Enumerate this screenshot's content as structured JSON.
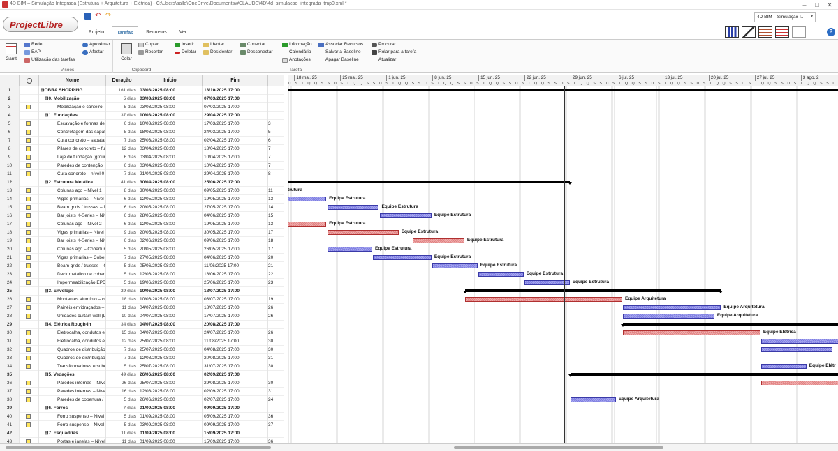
{
  "window": {
    "title": "4D BIM – Simulação Integrada (Estrutura + Arquitetura + Elétrica) - C:\\Users\\salle\\OneDrive\\Documents\\#CLAUDE\\4D\\4d_simulacao_integrada_tmp0.xml *",
    "minimize": "–",
    "maximize": "□",
    "close": "✕"
  },
  "logo": "ProjectLibre",
  "tabs": [
    "Projeto",
    "Tarefas",
    "Recursos",
    "Ver"
  ],
  "active_tab": "Tarefas",
  "project_selector": "4D BIM – Simulação I...",
  "help": "?",
  "ribbon": {
    "gantt": "Gantt",
    "views": {
      "items": [
        "Rede",
        "EAP",
        "Utilização das tarefas",
        "Aproximar",
        "Afastar"
      ],
      "label": "Visões"
    },
    "clipboard": {
      "paste": "Colar",
      "items": [
        "Copiar",
        "Recortar"
      ],
      "label": "Clipboard"
    },
    "task": {
      "items": [
        "Inserir",
        "Deletar",
        "Identar",
        "Desidentar",
        "Conectar",
        "Desconectar",
        "Informação",
        "Calendário",
        "Anotações",
        "Associar Recursos",
        "Salvar a Baseline",
        "Apagar Baseline",
        "Procurar",
        "Rolar para a tarefa",
        "Atualizar"
      ],
      "label": "Tarefa"
    }
  },
  "columns": [
    "Nome",
    "Duração",
    "Início",
    "Fim"
  ],
  "rows": [
    [
      "1",
      "",
      0,
      "OBRA SHOPPING",
      "161 dias",
      "03/03/2025 08:00",
      "13/10/2025 17:00",
      "",
      1
    ],
    [
      "2",
      "",
      1,
      "0. Mobilização",
      "5 dias",
      "03/03/2025 08:00",
      "07/03/2025 17:00",
      "",
      1
    ],
    [
      "3",
      "n",
      2,
      "Mobilização e canteiro",
      "5 dias",
      "03/03/2025 08:00",
      "07/03/2025 17:00",
      "",
      0
    ],
    [
      "4",
      "",
      1,
      "1. Fundações",
      "37 dias",
      "10/03/2025 08:00",
      "29/04/2025 17:00",
      "",
      1
    ],
    [
      "5",
      "n",
      2,
      "Escavação e formas de s",
      "6 dias",
      "10/03/2025 08:00",
      "17/03/2025 17:00",
      "3",
      0
    ],
    [
      "6",
      "n",
      2,
      "Concretagem das sapata",
      "5 dias",
      "18/03/2025 08:00",
      "24/03/2025 17:00",
      "5",
      0
    ],
    [
      "7",
      "n",
      2,
      "Cura concreto – sapatas",
      "7 dias",
      "25/03/2025 08:00",
      "02/04/2025 17:00",
      "6",
      0
    ],
    [
      "8",
      "n",
      2,
      "Pilares de concreto – fun",
      "12 dias",
      "03/04/2025 08:00",
      "18/04/2025 17:00",
      "7",
      0
    ],
    [
      "9",
      "n",
      2,
      "Laje de fundação (groun",
      "6 dias",
      "03/04/2025 08:00",
      "10/04/2025 17:00",
      "7",
      0
    ],
    [
      "10",
      "n",
      2,
      "Paredes de contenção",
      "6 dias",
      "03/04/2025 08:00",
      "10/04/2025 17:00",
      "7",
      0
    ],
    [
      "11",
      "n",
      2,
      "Cura concreto – nível 0",
      "7 dias",
      "21/04/2025 08:00",
      "29/04/2025 17:00",
      "8",
      0
    ],
    [
      "12",
      "",
      1,
      "2. Estrutura Metálica",
      "41 dias",
      "30/04/2025 08:00",
      "25/06/2025 17:00",
      "",
      1
    ],
    [
      "13",
      "n",
      2,
      "Colunas aço – Nível 1",
      "8 dias",
      "30/04/2025 08:00",
      "09/05/2025 17:00",
      "11",
      0
    ],
    [
      "14",
      "n",
      2,
      "Vigas primárias – Nível 1",
      "6 dias",
      "12/05/2025 08:00",
      "19/05/2025 17:00",
      "13",
      0
    ],
    [
      "15",
      "n",
      2,
      "Beam grids / trusses – N",
      "6 dias",
      "20/05/2025 08:00",
      "27/05/2025 17:00",
      "14",
      0
    ],
    [
      "16",
      "n",
      2,
      "Bar joists K-Series – Níve",
      "6 dias",
      "28/05/2025 08:00",
      "04/06/2025 17:00",
      "15",
      0
    ],
    [
      "17",
      "n",
      2,
      "Colunas aço – Nível 2",
      "6 dias",
      "12/05/2025 08:00",
      "19/05/2025 17:00",
      "13",
      0
    ],
    [
      "18",
      "n",
      2,
      "Vigas primárias – Nível 2",
      "9 dias",
      "20/05/2025 08:00",
      "30/05/2025 17:00",
      "17",
      0
    ],
    [
      "19",
      "n",
      2,
      "Bar joists K-Series – Níve",
      "6 dias",
      "02/06/2025 08:00",
      "09/06/2025 17:00",
      "18",
      0
    ],
    [
      "20",
      "n",
      2,
      "Colunas aço – Cobertura",
      "5 dias",
      "20/05/2025 08:00",
      "26/05/2025 17:00",
      "17",
      0
    ],
    [
      "21",
      "n",
      2,
      "Vigas primárias – Cobert",
      "7 dias",
      "27/05/2025 08:00",
      "04/06/2025 17:00",
      "20",
      0
    ],
    [
      "22",
      "n",
      2,
      "Beam grids / trusses – Co",
      "5 dias",
      "05/06/2025 08:00",
      "11/06/2025 17:00",
      "21",
      0
    ],
    [
      "23",
      "n",
      2,
      "Deck metálico de cobertu",
      "5 dias",
      "12/06/2025 08:00",
      "18/06/2025 17:00",
      "22",
      0
    ],
    [
      "24",
      "n",
      2,
      "Impermeabilização EPDM",
      "5 dias",
      "19/06/2025 08:00",
      "25/06/2025 17:00",
      "23",
      0
    ],
    [
      "25",
      "",
      1,
      "3. Envelope",
      "29 dias",
      "10/06/2025 08:00",
      "18/07/2025 17:00",
      "",
      1
    ],
    [
      "26",
      "n",
      2,
      "Montantes alumínio – cur",
      "18 dias",
      "10/06/2025 08:00",
      "03/07/2025 17:00",
      "19",
      0
    ],
    [
      "27",
      "n",
      2,
      "Painéis envidraçados – gl",
      "11 dias",
      "04/07/2025 08:00",
      "18/07/2025 17:00",
      "26",
      0
    ],
    [
      "28",
      "n",
      2,
      "Unidades curtain wall (L1",
      "10 dias",
      "04/07/2025 08:00",
      "17/07/2025 17:00",
      "26",
      0
    ],
    [
      "29",
      "",
      1,
      "4. Elétrica Rough-in",
      "34 dias",
      "04/07/2025 08:00",
      "20/08/2025 17:00",
      "",
      1
    ],
    [
      "30",
      "n",
      2,
      "Eletrocalha, condutos e c",
      "15 dias",
      "04/07/2025 08:00",
      "24/07/2025 17:00",
      "26",
      0
    ],
    [
      "31",
      "n",
      2,
      "Eletrocalha, condutos e c",
      "12 dias",
      "25/07/2025 08:00",
      "11/08/2025 17:00",
      "30",
      0
    ],
    [
      "32",
      "n",
      2,
      "Quadros de distribuição 2",
      "7 dias",
      "25/07/2025 08:00",
      "04/08/2025 17:00",
      "30",
      0
    ],
    [
      "33",
      "n",
      2,
      "Quadros de distribuição 2",
      "7 dias",
      "12/08/2025 08:00",
      "20/08/2025 17:00",
      "31",
      0
    ],
    [
      "34",
      "n",
      2,
      "Transformadores e subes",
      "5 dias",
      "25/07/2025 08:00",
      "31/07/2025 17:00",
      "30",
      0
    ],
    [
      "35",
      "",
      1,
      "5. Vedações",
      "49 dias",
      "26/06/2025 08:00",
      "02/09/2025 17:00",
      "",
      1
    ],
    [
      "36",
      "n",
      2,
      "Paredes internas – Nível",
      "26 dias",
      "25/07/2025 08:00",
      "29/08/2025 17:00",
      "30",
      0
    ],
    [
      "37",
      "n",
      2,
      "Paredes internas – Nível",
      "16 dias",
      "12/08/2025 08:00",
      "02/09/2025 17:00",
      "31",
      0
    ],
    [
      "38",
      "n",
      2,
      "Paredes de cobertura / n",
      "5 dias",
      "26/06/2025 08:00",
      "02/07/2025 17:00",
      "24",
      0
    ],
    [
      "39",
      "",
      1,
      "6. Forros",
      "7 dias",
      "01/09/2025 08:00",
      "09/09/2025 17:00",
      "",
      1
    ],
    [
      "40",
      "n",
      2,
      "Forro suspenso – Nível 1",
      "5 dias",
      "01/09/2025 08:00",
      "05/09/2025 17:00",
      "36",
      0
    ],
    [
      "41",
      "n",
      2,
      "Forro suspenso – Nível 2",
      "5 dias",
      "03/09/2025 08:00",
      "09/09/2025 17:00",
      "37",
      0
    ],
    [
      "42",
      "",
      1,
      "7. Esquadrias",
      "11 dias",
      "01/09/2025 08:00",
      "15/09/2025 17:00",
      "",
      1
    ],
    [
      "43",
      "n",
      2,
      "Portas e janelas – Nível 1",
      "11 dias",
      "01/09/2025 08:00",
      "15/09/2025 17:00",
      "36",
      0
    ]
  ],
  "gantt": {
    "weeks": [
      "18 mai. 25",
      "25 mai. 25",
      "1 jun. 25",
      "8 jun. 25",
      "15 jun. 25",
      "22 jun. 25",
      "29 jun. 25",
      "6 jul. 25",
      "13 jul. 25",
      "20 jul. 25",
      "27 jul. 25",
      "3 ago. 2"
    ],
    "day_letters": "D S T Q Q S S ",
    "first_visible_date": "2025-05-14",
    "resource_labels": {
      "estrutura": "Equipe Estrutura",
      "arquitetura": "Equipe Arquitetura",
      "eletrica": "Equipe Elétrica",
      "eletrica_trunc": "Equipe Elétr",
      "truncated_label": "trutura"
    }
  }
}
